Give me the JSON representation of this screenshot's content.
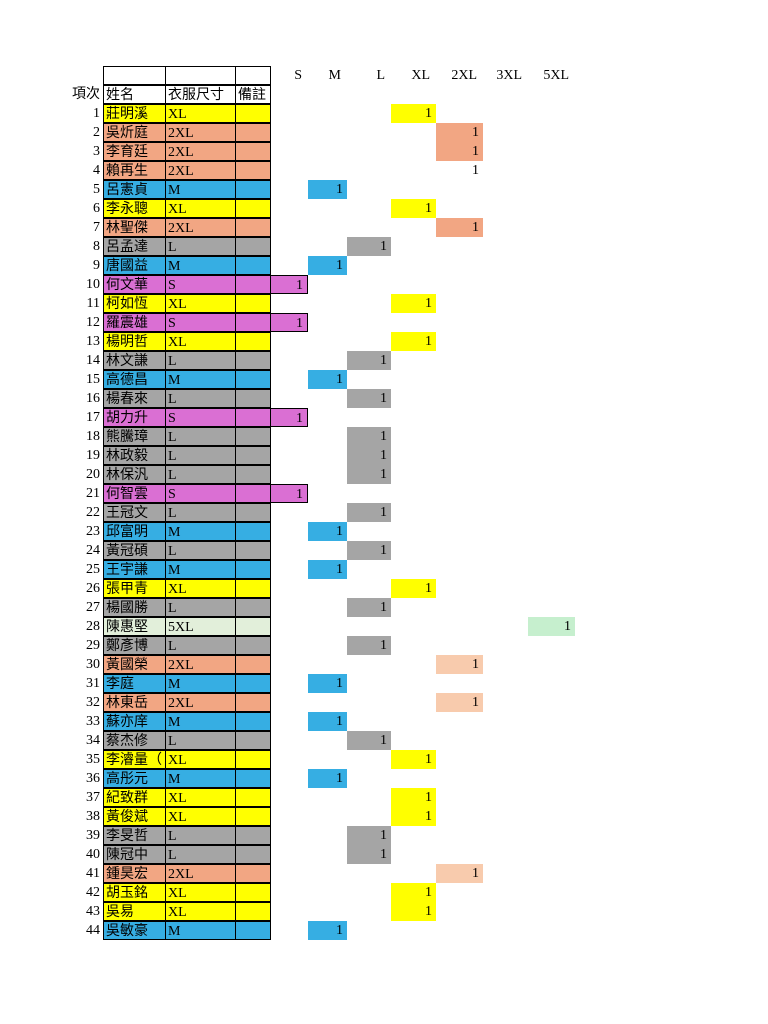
{
  "header": {
    "index": "項次",
    "name": "姓名",
    "size": "衣服尺寸",
    "note": "備註"
  },
  "sizes": [
    "S",
    "M",
    "L",
    "XL",
    "2XL",
    "3XL",
    "5XL"
  ],
  "size_colors": {
    "S": "#da6fd3",
    "M": "#36aee3",
    "L": "#a5a5a5",
    "XL": "#ffff00",
    "2XL": "#f2a683",
    "5XL": "#e2efda"
  },
  "rows": [
    {
      "no": 1,
      "name": "莊明溪",
      "size": "XL",
      "count": 1
    },
    {
      "no": 2,
      "name": "吳炘庭",
      "size": "2XL",
      "count": 1
    },
    {
      "no": 3,
      "name": "李育廷",
      "size": "2XL",
      "count": 1
    },
    {
      "no": 4,
      "name": "賴再生",
      "size": "2XL",
      "count": 1,
      "mark_color": "none"
    },
    {
      "no": 5,
      "name": "呂憲貞",
      "size": "M",
      "count": 1
    },
    {
      "no": 6,
      "name": "李永聰",
      "size": "XL",
      "count": 1
    },
    {
      "no": 7,
      "name": "林聖傑",
      "size": "2XL",
      "count": 1
    },
    {
      "no": 8,
      "name": "呂孟達",
      "size": "L",
      "count": 1
    },
    {
      "no": 9,
      "name": "唐國益",
      "size": "M",
      "count": 1
    },
    {
      "no": 10,
      "name": "何文華",
      "size": "S",
      "count": 1
    },
    {
      "no": 11,
      "name": "柯如恆",
      "size": "XL",
      "count": 1
    },
    {
      "no": 12,
      "name": "羅震雄",
      "size": "S",
      "count": 1
    },
    {
      "no": 13,
      "name": "楊明哲",
      "size": "XL",
      "count": 1
    },
    {
      "no": 14,
      "name": "林文謙",
      "size": "L",
      "count": 1
    },
    {
      "no": 15,
      "name": "高德昌",
      "size": "M",
      "count": 1
    },
    {
      "no": 16,
      "name": "楊春來",
      "size": "L",
      "count": 1
    },
    {
      "no": 17,
      "name": "胡力升",
      "size": "S",
      "count": 1
    },
    {
      "no": 18,
      "name": "熊騰璋",
      "size": "L",
      "count": 1
    },
    {
      "no": 19,
      "name": "林政毅",
      "size": "L",
      "count": 1
    },
    {
      "no": 20,
      "name": "林保汎",
      "size": "L",
      "count": 1
    },
    {
      "no": 21,
      "name": "何智雲",
      "size": "S",
      "count": 1
    },
    {
      "no": 22,
      "name": "王冠文",
      "size": "L",
      "count": 1
    },
    {
      "no": 23,
      "name": "邱富明",
      "size": "M",
      "count": 1
    },
    {
      "no": 24,
      "name": "黃冠碩",
      "size": "L",
      "count": 1
    },
    {
      "no": 25,
      "name": "王宇謙",
      "size": "M",
      "count": 1
    },
    {
      "no": 26,
      "name": "張甲青",
      "size": "XL",
      "count": 1
    },
    {
      "no": 27,
      "name": "楊國勝",
      "size": "L",
      "count": 1
    },
    {
      "no": 28,
      "name": "陳惠堅",
      "size": "5XL",
      "count": 1,
      "mark_color": "#c6efce"
    },
    {
      "no": 29,
      "name": "鄭彥博",
      "size": "L",
      "count": 1
    },
    {
      "no": 30,
      "name": "黃國榮",
      "size": "2XL",
      "count": 1,
      "mark_color": "#f8cbad"
    },
    {
      "no": 31,
      "name": "李庭",
      "size": "M",
      "count": 1
    },
    {
      "no": 32,
      "name": "林東岳",
      "size": "2XL",
      "count": 1,
      "mark_color": "#f8cbad"
    },
    {
      "no": 33,
      "name": "蘇亦庠",
      "size": "M",
      "count": 1
    },
    {
      "no": 34,
      "name": "蔡杰修",
      "size": "L",
      "count": 1
    },
    {
      "no": 35,
      "name": "李濬量（",
      "size": "XL",
      "count": 1
    },
    {
      "no": 36,
      "name": "高彤元",
      "size": "M",
      "count": 1
    },
    {
      "no": 37,
      "name": "紀致群",
      "size": "XL",
      "count": 1
    },
    {
      "no": 38,
      "name": "黃俊斌",
      "size": "XL",
      "count": 1
    },
    {
      "no": 39,
      "name": "李旻哲",
      "size": "L",
      "count": 1
    },
    {
      "no": 40,
      "name": "陳冠中",
      "size": "L",
      "count": 1
    },
    {
      "no": 41,
      "name": "鍾昊宏",
      "size": "2XL",
      "count": 1,
      "mark_color": "#f8cbad"
    },
    {
      "no": 42,
      "name": "胡玉銘",
      "size": "XL",
      "count": 1
    },
    {
      "no": 43,
      "name": "吳易",
      "size": "XL",
      "count": 1
    },
    {
      "no": 44,
      "name": "吳敏豪",
      "size": "M",
      "count": 1
    }
  ]
}
